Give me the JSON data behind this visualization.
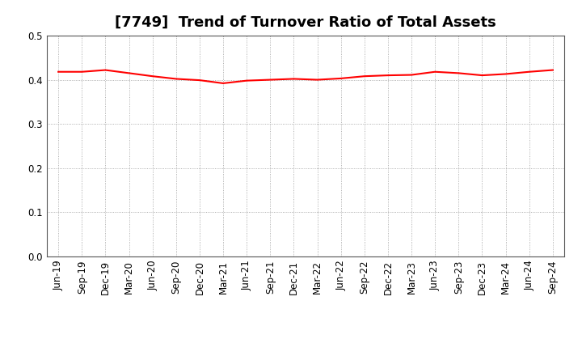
{
  "title": "[7749]  Trend of Turnover Ratio of Total Assets",
  "x_labels": [
    "Jun-19",
    "Sep-19",
    "Dec-19",
    "Mar-20",
    "Jun-20",
    "Sep-20",
    "Dec-20",
    "Mar-21",
    "Jun-21",
    "Sep-21",
    "Dec-21",
    "Mar-22",
    "Jun-22",
    "Sep-22",
    "Dec-22",
    "Mar-23",
    "Jun-23",
    "Sep-23",
    "Dec-23",
    "Mar-24",
    "Jun-24",
    "Sep-24"
  ],
  "y_values": [
    0.418,
    0.418,
    0.422,
    0.415,
    0.408,
    0.402,
    0.399,
    0.392,
    0.398,
    0.4,
    0.402,
    0.4,
    0.403,
    0.408,
    0.41,
    0.411,
    0.418,
    0.415,
    0.41,
    0.413,
    0.418,
    0.422
  ],
  "line_color": "#ff0000",
  "line_width": 1.5,
  "ylim": [
    0.0,
    0.5
  ],
  "yticks": [
    0.0,
    0.1,
    0.2,
    0.3,
    0.4,
    0.5
  ],
  "background_color": "#ffffff",
  "grid_color": "#999999",
  "title_fontsize": 13,
  "tick_fontsize": 8.5
}
